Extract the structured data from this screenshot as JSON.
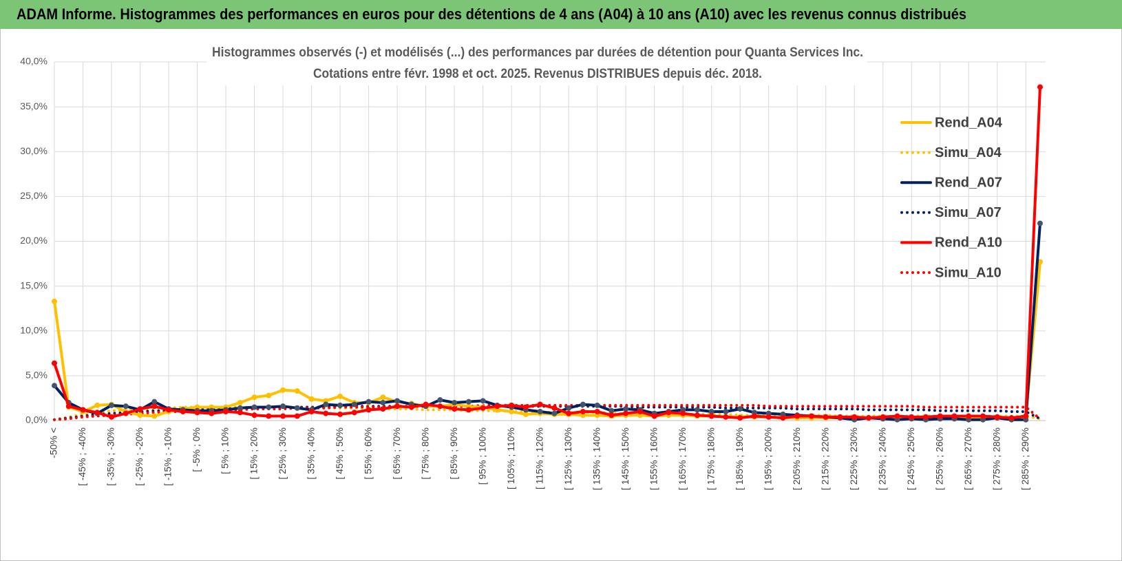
{
  "header": "ADAM Informe. Histogrammes des performances en euros pour des détentions de 4 ans (A04) à 10 ans (A10) avec les revenus connus distribués",
  "chart_data": {
    "type": "line",
    "title": "Histogrammes observés (-) et modélisés (...) des performances par durées de détention pour Quanta Services Inc.",
    "subtitle": "Cotations entre févr. 1998 et oct. 2025. Revenus DISTRIBUES depuis déc. 2018.",
    "categories": [
      "-50% <",
      null,
      "[ -45% ; -40%",
      null,
      "[ -35% ; -30%",
      null,
      "[ -25% ; -20%",
      null,
      "[ -15% ; -10%",
      null,
      "[ -5% ; 0%",
      null,
      "[ 5% ; 10%",
      null,
      "[ 15% ; 20%",
      null,
      "[ 25% ; 30%",
      null,
      "[ 35% ; 40%",
      null,
      "[ 45% ; 50%",
      null,
      "[ 55% ; 60%",
      null,
      "[ 65% ; 70%",
      null,
      "[ 75% ; 80%",
      null,
      "[ 85% ; 90%",
      null,
      "[ 95% ; 100%",
      null,
      "[ 105% ; 110%",
      null,
      "[ 115% ; 120%",
      null,
      "[ 125% ; 130%",
      null,
      "[ 135% ; 140%",
      null,
      "[ 145% ; 150%",
      null,
      "[ 155% ; 160%",
      null,
      "[ 165% ; 170%",
      null,
      "[ 175% ; 180%",
      null,
      "[ 185% ; 190%",
      null,
      "[ 195% ; 200%",
      null,
      "[ 205% ; 210%",
      null,
      "[ 215% ; 220%",
      null,
      "[ 225% ; 230%",
      null,
      "[ 235% ; 240%",
      null,
      "[ 245% ; 250%",
      null,
      "[ 255% ; 260%",
      null,
      "[ 265% ; 270%",
      null,
      "[ 275% ; 280%",
      null,
      "[ 285% ; 290%",
      null
    ],
    "series": [
      {
        "name": "Rend_A04",
        "color": "#ffc000",
        "style": "solid",
        "marker_color": "#ffc000",
        "values": [
          13.3,
          1.5,
          1.0,
          1.7,
          1.8,
          1.0,
          0.6,
          0.5,
          1.0,
          1.3,
          1.5,
          1.5,
          1.5,
          2.0,
          2.6,
          2.8,
          3.4,
          3.3,
          2.4,
          2.2,
          2.7,
          2.0,
          2.0,
          2.6,
          2.1,
          1.9,
          1.6,
          1.6,
          1.8,
          1.6,
          1.5,
          1.2,
          1.0,
          0.7,
          0.8,
          0.7,
          0.7,
          0.6,
          0.6,
          0.5,
          0.6,
          0.6,
          0.5,
          0.6,
          0.6,
          0.5,
          0.5,
          0.4,
          0.4,
          0.4,
          0.4,
          0.3,
          0.3,
          0.3,
          0.3,
          0.3,
          0.3,
          0.3,
          0.3,
          0.3,
          0.3,
          0.3,
          0.3,
          0.3,
          0.3,
          0.3,
          0.3,
          0.3,
          0.3,
          17.7
        ]
      },
      {
        "name": "Simu_A04",
        "color": "#ffc000",
        "style": "dotted",
        "values": [
          0.1,
          0.4,
          0.7,
          0.9,
          1.1,
          1.2,
          1.3,
          1.4,
          1.4,
          1.5,
          1.5,
          1.5,
          1.5,
          1.5,
          1.5,
          1.5,
          1.5,
          1.5,
          1.5,
          1.4,
          1.4,
          1.4,
          1.4,
          1.3,
          1.3,
          1.3,
          1.2,
          1.2,
          1.2,
          1.1,
          1.1,
          1.1,
          1.0,
          1.0,
          1.0,
          0.9,
          0.9,
          0.9,
          0.9,
          0.8,
          0.8,
          0.8,
          0.8,
          0.7,
          0.7,
          0.7,
          0.7,
          0.7,
          0.6,
          0.6,
          0.6,
          0.6,
          0.6,
          0.6,
          0.6,
          0.5,
          0.5,
          0.5,
          0.5,
          0.5,
          0.5,
          0.5,
          0.5,
          0.5,
          0.5,
          0.5,
          0.5,
          0.5,
          0.5,
          0.2
        ]
      },
      {
        "name": "Rend_A07",
        "color": "#002060",
        "style": "solid",
        "marker_color": "#44546a",
        "values": [
          3.9,
          2.0,
          1.2,
          0.8,
          1.7,
          1.6,
          1.2,
          2.1,
          1.3,
          1.2,
          1.1,
          1.1,
          1.2,
          1.4,
          1.5,
          1.5,
          1.6,
          1.4,
          1.2,
          1.8,
          1.7,
          1.8,
          2.1,
          2.0,
          2.2,
          1.8,
          1.6,
          2.3,
          2.0,
          2.1,
          2.2,
          1.7,
          1.5,
          1.2,
          1.0,
          0.8,
          1.4,
          1.8,
          1.7,
          1.1,
          1.3,
          1.2,
          0.8,
          1.0,
          1.2,
          1.2,
          1.0,
          1.0,
          1.3,
          0.9,
          0.8,
          0.7,
          0.6,
          0.5,
          0.4,
          0.3,
          0.1,
          0.3,
          0.2,
          0.1,
          0.2,
          0.1,
          0.2,
          0.2,
          0.1,
          0.1,
          0.3,
          0.1,
          0.1,
          22.0
        ]
      },
      {
        "name": "Simu_A07",
        "color": "#002060",
        "style": "dotted",
        "values": [
          0.1,
          0.3,
          0.5,
          0.7,
          0.8,
          0.9,
          1.0,
          1.1,
          1.1,
          1.2,
          1.2,
          1.3,
          1.3,
          1.4,
          1.4,
          1.4,
          1.5,
          1.5,
          1.5,
          1.5,
          1.6,
          1.6,
          1.6,
          1.6,
          1.6,
          1.6,
          1.6,
          1.6,
          1.6,
          1.6,
          1.6,
          1.6,
          1.6,
          1.6,
          1.6,
          1.6,
          1.6,
          1.6,
          1.6,
          1.6,
          1.6,
          1.5,
          1.5,
          1.5,
          1.5,
          1.5,
          1.5,
          1.4,
          1.4,
          1.4,
          1.4,
          1.4,
          1.3,
          1.3,
          1.3,
          1.3,
          1.3,
          1.2,
          1.2,
          1.2,
          1.2,
          1.2,
          1.1,
          1.1,
          1.1,
          1.1,
          1.1,
          1.0,
          1.0,
          0.2
        ]
      },
      {
        "name": "Rend_A10",
        "color": "#ff0000",
        "style": "solid",
        "marker_color": "#ff0000",
        "values": [
          6.4,
          1.6,
          1.2,
          0.9,
          0.4,
          0.8,
          1.3,
          1.6,
          1.2,
          1.0,
          0.9,
          0.8,
          1.0,
          0.9,
          0.6,
          0.5,
          0.5,
          0.5,
          1.0,
          0.8,
          0.7,
          0.9,
          1.2,
          1.3,
          1.6,
          1.5,
          1.8,
          1.6,
          1.3,
          1.2,
          1.4,
          1.6,
          1.7,
          1.5,
          1.8,
          1.4,
          0.8,
          1.0,
          1.0,
          0.6,
          0.8,
          1.0,
          0.5,
          0.9,
          0.8,
          0.6,
          0.5,
          0.4,
          0.3,
          0.5,
          0.4,
          0.3,
          0.5,
          0.5,
          0.4,
          0.4,
          0.4,
          0.3,
          0.4,
          0.5,
          0.4,
          0.4,
          0.5,
          0.5,
          0.5,
          0.5,
          0.4,
          0.3,
          0.5,
          37.2
        ]
      },
      {
        "name": "Simu_A10",
        "color": "#ff0000",
        "style": "dotted",
        "values": [
          0.1,
          0.2,
          0.4,
          0.5,
          0.6,
          0.7,
          0.8,
          0.9,
          1.0,
          1.0,
          1.1,
          1.1,
          1.2,
          1.2,
          1.3,
          1.3,
          1.3,
          1.4,
          1.4,
          1.4,
          1.5,
          1.5,
          1.5,
          1.5,
          1.6,
          1.6,
          1.6,
          1.6,
          1.6,
          1.6,
          1.7,
          1.7,
          1.7,
          1.7,
          1.7,
          1.7,
          1.7,
          1.7,
          1.7,
          1.7,
          1.7,
          1.7,
          1.7,
          1.7,
          1.7,
          1.7,
          1.7,
          1.7,
          1.7,
          1.7,
          1.6,
          1.6,
          1.6,
          1.6,
          1.6,
          1.6,
          1.6,
          1.6,
          1.6,
          1.6,
          1.6,
          1.5,
          1.5,
          1.5,
          1.5,
          1.5,
          1.5,
          1.5,
          1.5,
          0.2
        ]
      }
    ],
    "ylim": [
      0,
      40
    ],
    "yticks": [
      {
        "value": 0,
        "label": "0,0%"
      },
      {
        "value": 5,
        "label": "5,0%"
      },
      {
        "value": 10,
        "label": "10,0%"
      },
      {
        "value": 15,
        "label": "15,0%"
      },
      {
        "value": 20,
        "label": "20,0%"
      },
      {
        "value": 25,
        "label": "25,0%"
      },
      {
        "value": 30,
        "label": "30,0%"
      },
      {
        "value": 35,
        "label": "35,0%"
      },
      {
        "value": 40,
        "label": "40,0%"
      }
    ],
    "grid": true,
    "legend": "right"
  }
}
